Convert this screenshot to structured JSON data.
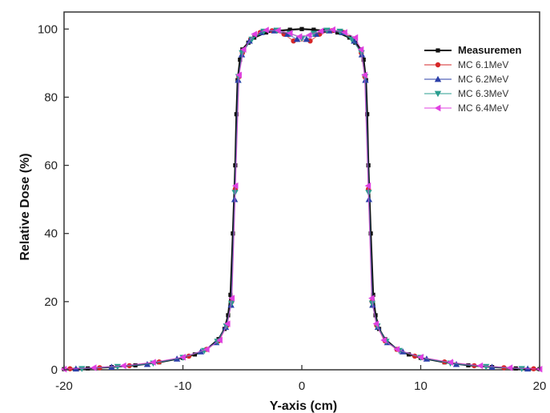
{
  "chart_data": {
    "type": "scatter",
    "title": "",
    "xlabel": "Y-axis (cm)",
    "ylabel": "Relative Dose (%)",
    "xlim": [
      -20,
      20
    ],
    "ylim": [
      0,
      105
    ],
    "xticks": [
      -20,
      -10,
      0,
      10,
      20
    ],
    "yticks": [
      0,
      20,
      40,
      60,
      80,
      100
    ],
    "legend_position": "top-right",
    "series": [
      {
        "name": "Measuremen",
        "color": "#111111",
        "marker": "square",
        "x": [
          -20,
          -18,
          -16,
          -14,
          -12,
          -10,
          -9,
          -8,
          -7,
          -6.5,
          -6.2,
          -6,
          -5.8,
          -5.6,
          -5.5,
          -5.4,
          -5.2,
          -5,
          -4.5,
          -4,
          -3,
          -2,
          -1,
          0,
          1,
          2,
          3,
          4,
          4.5,
          5,
          5.2,
          5.4,
          5.5,
          5.6,
          5.8,
          6,
          6.2,
          6.5,
          7,
          8,
          9,
          10,
          12,
          14,
          16,
          18,
          20
        ],
        "y": [
          0.2,
          0.4,
          0.8,
          1.3,
          2.2,
          3.5,
          4.5,
          6,
          9,
          12,
          16,
          22,
          40,
          60,
          75,
          85,
          91,
          94,
          96,
          97.5,
          99,
          99.5,
          99.8,
          100,
          99.8,
          99.5,
          99,
          97.5,
          96,
          94,
          91,
          85,
          75,
          60,
          40,
          22,
          16,
          12,
          9,
          6,
          4.5,
          3.5,
          2.2,
          1.3,
          0.8,
          0.4,
          0.2
        ]
      },
      {
        "name": "MC 6.1MeV",
        "color": "#d62728",
        "marker": "circle",
        "x": [
          -19.5,
          -17,
          -14.5,
          -12,
          -9.5,
          -8,
          -7,
          -6.3,
          -5.9,
          -5.6,
          -5.3,
          -5,
          -4.3,
          -3.5,
          -2.5,
          -1.5,
          -0.7,
          0.7,
          1.5,
          2.5,
          3.5,
          4.3,
          5,
          5.3,
          5.6,
          5.9,
          6.3,
          7,
          8,
          9.5,
          12,
          14.5,
          17,
          19.5
        ],
        "y": [
          0.3,
          0.6,
          1.2,
          2.3,
          4,
          6,
          8.5,
          13,
          20,
          53,
          86,
          93,
          97,
          99,
          99.5,
          98.5,
          96.5,
          96.5,
          98.5,
          99.5,
          99,
          97,
          93,
          86,
          53,
          20,
          13,
          8.5,
          6,
          4,
          2.3,
          1.2,
          0.6,
          0.3
        ]
      },
      {
        "name": "MC 6.2MeV",
        "color": "#2b3fa8",
        "marker": "triangle-up",
        "x": [
          -19,
          -16,
          -13,
          -10.5,
          -8.5,
          -7.2,
          -6.4,
          -5.95,
          -5.65,
          -5.35,
          -5.05,
          -4.4,
          -3.4,
          -2.3,
          -1.2,
          -0.4,
          0.4,
          1.2,
          2.3,
          3.4,
          4.4,
          5.05,
          5.35,
          5.65,
          5.95,
          6.4,
          7.2,
          8.5,
          10.5,
          13,
          16,
          19
        ],
        "y": [
          0.3,
          0.8,
          1.6,
          3.2,
          5.3,
          8,
          12.5,
          19,
          50,
          85,
          92.5,
          96.5,
          99,
          99.5,
          98.5,
          97,
          97,
          98.5,
          99.5,
          99,
          96.5,
          92.5,
          85,
          50,
          19,
          12.5,
          8,
          5.3,
          3.2,
          1.6,
          0.8,
          0.3
        ]
      },
      {
        "name": "MC 6.3MeV",
        "color": "#2a9d8f",
        "marker": "triangle-down",
        "x": [
          -18.5,
          -15.5,
          -12.5,
          -10,
          -8.2,
          -7.1,
          -6.35,
          -5.92,
          -5.62,
          -5.32,
          -5.02,
          -4.2,
          -3.2,
          -2.1,
          -1.0,
          0,
          1.0,
          2.1,
          3.2,
          4.2,
          5.02,
          5.32,
          5.62,
          5.92,
          6.35,
          7.1,
          8.2,
          10,
          12.5,
          15.5,
          18.5
        ],
        "y": [
          0.3,
          0.9,
          1.9,
          3.6,
          5.6,
          8.3,
          12.8,
          19.5,
          52,
          86,
          93,
          97,
          99.3,
          99.6,
          98.7,
          97.3,
          98.7,
          99.6,
          99.3,
          97,
          93,
          86,
          52,
          19.5,
          12.8,
          8.3,
          5.6,
          3.6,
          1.9,
          0.9,
          0.3
        ]
      },
      {
        "name": "MC 6.4MeV",
        "color": "#e040e0",
        "marker": "triangle-left",
        "x": [
          -20,
          -17.5,
          -15,
          -12.5,
          -10,
          -8,
          -6.9,
          -6.25,
          -5.88,
          -5.58,
          -5.28,
          -4.9,
          -4.0,
          -3.0,
          -2.0,
          -1.0,
          -0.2,
          0.6,
          1.6,
          2.6,
          3.6,
          4.5,
          4.98,
          5.28,
          5.58,
          5.88,
          6.25,
          6.9,
          8,
          10,
          12.5,
          15,
          17.5,
          20
        ],
        "y": [
          0.2,
          0.6,
          1.2,
          2.2,
          3.7,
          6,
          8.7,
          13.5,
          21,
          54,
          86.5,
          94,
          98.5,
          99.7,
          99.6,
          98.8,
          97.8,
          98.2,
          99.4,
          99.8,
          99,
          97.5,
          94,
          86.5,
          54,
          21,
          13.5,
          8.7,
          6,
          3.7,
          2.2,
          1.2,
          0.6,
          0.2
        ]
      }
    ]
  }
}
